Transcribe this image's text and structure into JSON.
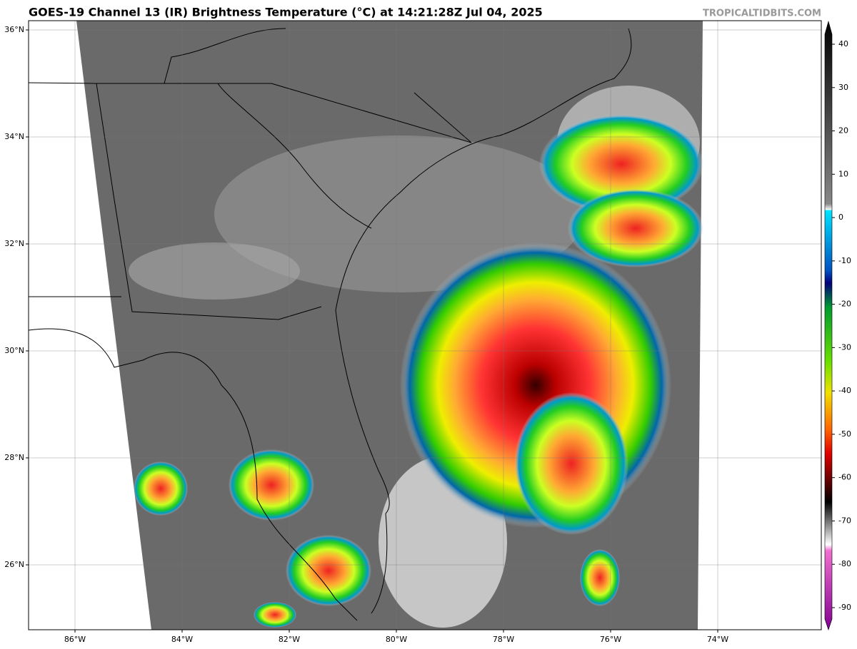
{
  "title": "GOES-19 Channel 13 (IR) Brightness Temperature (°C) at 14:21:28Z Jul 04, 2025",
  "watermark": "TROPICALTIDBITS.COM",
  "map": {
    "lon_ticks": [
      {
        "value": -86,
        "label": "86°W"
      },
      {
        "value": -84,
        "label": "84°W"
      },
      {
        "value": -82,
        "label": "82°W"
      },
      {
        "value": -80,
        "label": "80°W"
      },
      {
        "value": -78,
        "label": "78°W"
      },
      {
        "value": -76,
        "label": "76°W"
      },
      {
        "value": -74,
        "label": "74°W"
      }
    ],
    "lat_ticks": [
      {
        "value": 36,
        "label": "36°N"
      },
      {
        "value": 34,
        "label": "34°N"
      },
      {
        "value": 32,
        "label": "32°N"
      },
      {
        "value": 30,
        "label": "30°N"
      },
      {
        "value": 28,
        "label": "28°N"
      },
      {
        "value": 26,
        "label": "26°N"
      }
    ]
  },
  "colorbar": {
    "ticks": [
      40,
      30,
      20,
      10,
      0,
      -10,
      -20,
      -30,
      -40,
      -50,
      -60,
      -70,
      -80,
      -90
    ]
  }
}
